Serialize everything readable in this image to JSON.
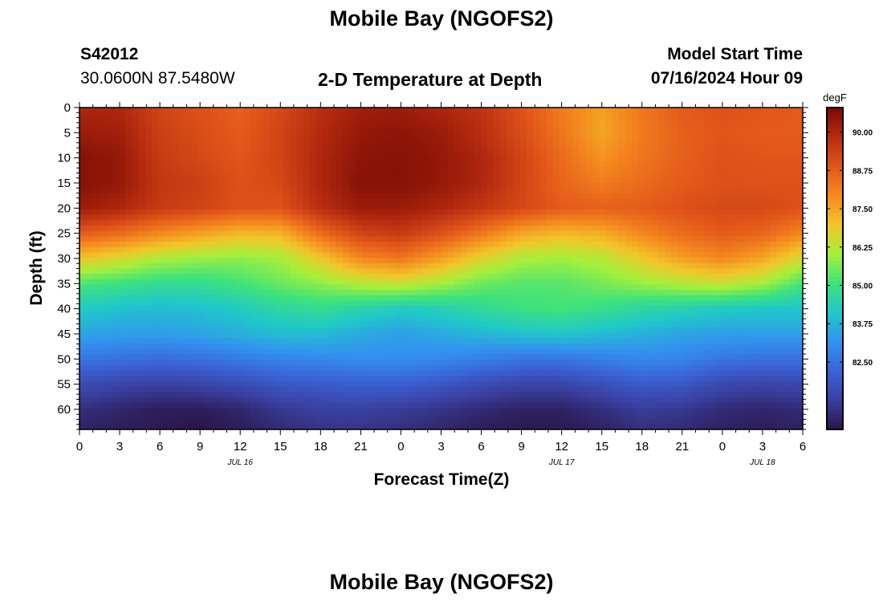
{
  "page": {
    "title_top": "Mobile Bay (NGOFS2)",
    "title_bottom": "Mobile Bay (NGOFS2)",
    "station_id": "S42012",
    "station_coords": "30.0600N  87.5480W",
    "plot_title": "2-D Temperature at Depth",
    "model_label": "Model Start Time",
    "model_time": "07/16/2024 Hour 09"
  },
  "colors": {
    "background": "#ffffff",
    "axis": "#000000",
    "colormap": [
      "#2a1547",
      "#3a3f9e",
      "#3a63d6",
      "#3391f0",
      "#20c8c9",
      "#3ee27c",
      "#a7ef3b",
      "#f2c52a",
      "#f58a1f",
      "#e2561a",
      "#b72c10",
      "#7a0b04"
    ]
  },
  "chart_data": {
    "type": "heatmap",
    "title": "2-D Temperature at Depth",
    "xlabel": "Forecast Time(Z)",
    "ylabel": "Depth (ft)",
    "colorbar_label": "degF",
    "xlim": [
      0,
      54
    ],
    "ylim": [
      0,
      64
    ],
    "y_inverted": true,
    "x_ticks": [
      0,
      3,
      6,
      9,
      12,
      15,
      18,
      21,
      24,
      27,
      30,
      33,
      36,
      39,
      42,
      45,
      48,
      51,
      54
    ],
    "x_tick_labels": [
      "0",
      "3",
      "6",
      "9",
      "12",
      "15",
      "18",
      "21",
      "0",
      "3",
      "6",
      "9",
      "12",
      "15",
      "18",
      "21",
      "0",
      "3",
      "6"
    ],
    "date_labels": [
      {
        "x": 12,
        "label": "JUL 16"
      },
      {
        "x": 36,
        "label": "JUL 17"
      },
      {
        "x": 51,
        "label": "JUL 18"
      }
    ],
    "y_ticks": [
      0,
      5,
      10,
      15,
      20,
      25,
      30,
      35,
      40,
      45,
      50,
      55,
      60
    ],
    "y_tick_labels": [
      "0",
      "5",
      "10",
      "15",
      "20",
      "25",
      "30",
      "35",
      "40",
      "45",
      "50",
      "55",
      "60"
    ],
    "color_range": [
      80.3,
      90.8
    ],
    "colorbar_ticks": [
      90.0,
      88.75,
      87.5,
      86.25,
      85.0,
      83.75,
      82.5
    ],
    "colorbar_tick_labels": [
      "90.00",
      "88.75",
      "87.50",
      "86.25",
      "85.00",
      "83.75",
      "82.50"
    ],
    "depth_levels": [
      0,
      5,
      10,
      15,
      20,
      25,
      30,
      35,
      40,
      45,
      50,
      55,
      60,
      64
    ],
    "time_hours": [
      0,
      3,
      6,
      9,
      12,
      15,
      18,
      21,
      24,
      27,
      30,
      33,
      36,
      39,
      42,
      45,
      48,
      51,
      54
    ],
    "temperature": [
      [
        90.0,
        90.0,
        89.3,
        89.0,
        88.7,
        89.2,
        89.8,
        90.2,
        90.3,
        90.0,
        89.7,
        89.0,
        88.2,
        87.6,
        88.3,
        88.8,
        89.0,
        88.9,
        88.8
      ],
      [
        90.3,
        90.2,
        89.4,
        89.1,
        88.8,
        89.3,
        89.9,
        90.4,
        90.5,
        90.3,
        89.8,
        89.1,
        88.3,
        87.5,
        88.2,
        88.7,
        88.9,
        88.8,
        88.8
      ],
      [
        90.6,
        90.4,
        89.5,
        89.2,
        88.9,
        89.3,
        90.0,
        90.5,
        90.6,
        90.4,
        90.0,
        89.3,
        88.5,
        87.8,
        88.3,
        88.7,
        89.0,
        88.9,
        88.9
      ],
      [
        90.6,
        90.4,
        89.6,
        89.4,
        89.0,
        89.2,
        90.0,
        90.6,
        90.6,
        90.4,
        90.0,
        89.3,
        88.6,
        88.2,
        88.5,
        88.8,
        89.0,
        89.0,
        89.0
      ],
      [
        90.3,
        90.0,
        89.5,
        89.3,
        89.0,
        89.0,
        89.8,
        90.3,
        90.3,
        90.0,
        89.6,
        89.2,
        88.8,
        88.7,
        88.8,
        89.0,
        89.2,
        89.2,
        89.0
      ],
      [
        88.8,
        88.5,
        88.0,
        87.6,
        87.2,
        87.3,
        88.5,
        89.3,
        89.5,
        89.0,
        88.3,
        87.5,
        87.2,
        87.4,
        88.0,
        88.5,
        88.8,
        88.6,
        88.0
      ],
      [
        87.0,
        86.6,
        86.1,
        85.9,
        85.8,
        86.0,
        86.9,
        88.0,
        88.3,
        87.6,
        86.7,
        86.1,
        86.0,
        86.2,
        86.9,
        87.6,
        88.0,
        87.5,
        86.5
      ],
      [
        85.2,
        85.0,
        84.8,
        84.8,
        85.1,
        85.5,
        85.8,
        86.2,
        86.4,
        86.0,
        85.5,
        85.3,
        85.3,
        85.6,
        85.9,
        86.2,
        86.4,
        86.0,
        85.1
      ],
      [
        84.2,
        84.0,
        83.9,
        84.0,
        84.2,
        84.6,
        84.8,
        84.5,
        84.2,
        84.4,
        84.7,
        85.0,
        85.1,
        84.9,
        84.6,
        84.4,
        84.2,
        84.1,
        84.1
      ],
      [
        83.5,
        83.4,
        83.4,
        83.5,
        83.7,
        83.9,
        83.9,
        83.6,
        83.4,
        83.6,
        83.8,
        84.0,
        84.1,
        83.9,
        83.7,
        83.5,
        83.4,
        83.4,
        83.4
      ],
      [
        82.6,
        82.5,
        82.4,
        82.5,
        82.7,
        82.9,
        83.0,
        83.1,
        83.1,
        83.0,
        82.8,
        82.6,
        82.6,
        82.8,
        83.0,
        82.9,
        82.6,
        82.5,
        82.5
      ],
      [
        81.6,
        81.4,
        81.3,
        81.4,
        81.6,
        81.9,
        82.0,
        82.1,
        82.1,
        81.9,
        81.6,
        81.4,
        81.4,
        81.7,
        82.0,
        81.9,
        81.5,
        81.4,
        81.5
      ],
      [
        80.9,
        80.7,
        80.5,
        80.5,
        80.7,
        81.1,
        81.3,
        81.3,
        81.2,
        81.0,
        80.8,
        80.6,
        80.6,
        80.9,
        81.2,
        81.1,
        80.8,
        80.7,
        80.8
      ],
      [
        80.6,
        80.5,
        80.4,
        80.3,
        80.5,
        80.8,
        81.0,
        81.0,
        80.9,
        80.7,
        80.5,
        80.4,
        80.4,
        80.6,
        80.9,
        80.8,
        80.6,
        80.5,
        80.6
      ]
    ]
  }
}
